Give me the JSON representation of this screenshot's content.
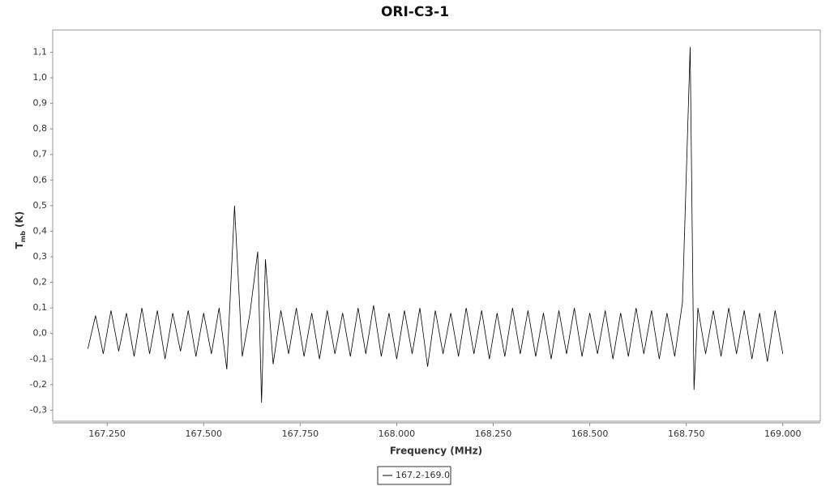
{
  "chart_data": {
    "type": "line",
    "title": "ORI-C3-1",
    "x_label": "Frequency (MHz)",
    "y_label": {
      "main": "T",
      "sub": "mb",
      "unit": "(K)"
    },
    "xlim": [
      167.109,
      169.097
    ],
    "ylim": [
      -0.343,
      1.187
    ],
    "xticks": [
      {
        "value": 167.25,
        "label": "167.250"
      },
      {
        "value": 167.5,
        "label": "167.500"
      },
      {
        "value": 167.75,
        "label": "167.750"
      },
      {
        "value": 168,
        "label": "168.000"
      },
      {
        "value": 168.25,
        "label": "168.250"
      },
      {
        "value": 168.5,
        "label": "168.500"
      },
      {
        "value": 168.75,
        "label": "168.750"
      },
      {
        "value": 169,
        "label": "169.000"
      }
    ],
    "yticks": [
      {
        "value": -0.3,
        "label": "-0,3"
      },
      {
        "value": -0.2,
        "label": "-0,2"
      },
      {
        "value": -0.1,
        "label": "-0,1"
      },
      {
        "value": 0,
        "label": "0,0"
      },
      {
        "value": 0.1,
        "label": "0,1"
      },
      {
        "value": 0.2,
        "label": "0,2"
      },
      {
        "value": 0.3,
        "label": "0,3"
      },
      {
        "value": 0.4,
        "label": "0,4"
      },
      {
        "value": 0.5,
        "label": "0,5"
      },
      {
        "value": 0.6,
        "label": "0,6"
      },
      {
        "value": 0.7,
        "label": "0,7"
      },
      {
        "value": 0.8,
        "label": "0,8"
      },
      {
        "value": 0.9,
        "label": "0,9"
      },
      {
        "value": 1.0,
        "label": "1,0"
      },
      {
        "value": 1.1,
        "label": "1,1"
      }
    ],
    "x": [
      167.2,
      167.22,
      167.24,
      167.26,
      167.28,
      167.3,
      167.32,
      167.34,
      167.36,
      167.38,
      167.4,
      167.42,
      167.44,
      167.46,
      167.48,
      167.5,
      167.52,
      167.54,
      167.56,
      167.58,
      167.6,
      167.62,
      167.64,
      167.65,
      167.66,
      167.68,
      167.7,
      167.72,
      167.74,
      167.76,
      167.78,
      167.8,
      167.82,
      167.84,
      167.86,
      167.88,
      167.9,
      167.92,
      167.94,
      167.96,
      167.98,
      168.0,
      168.02,
      168.04,
      168.06,
      168.08,
      168.1,
      168.12,
      168.14,
      168.16,
      168.18,
      168.2,
      168.22,
      168.24,
      168.26,
      168.28,
      168.3,
      168.32,
      168.34,
      168.36,
      168.38,
      168.4,
      168.42,
      168.44,
      168.46,
      168.48,
      168.5,
      168.52,
      168.54,
      168.56,
      168.58,
      168.6,
      168.62,
      168.64,
      168.66,
      168.68,
      168.7,
      168.72,
      168.74,
      168.76,
      168.77,
      168.78,
      168.8,
      168.82,
      168.84,
      168.86,
      168.88,
      168.9,
      168.92,
      168.94,
      168.96,
      168.98,
      169.0
    ],
    "series": [
      {
        "name": "167.2-169.0",
        "color": "#000000",
        "values": [
          -0.06,
          0.07,
          -0.08,
          0.09,
          -0.07,
          0.08,
          -0.09,
          0.1,
          -0.08,
          0.09,
          -0.1,
          0.08,
          -0.07,
          0.09,
          -0.09,
          0.08,
          -0.08,
          0.1,
          -0.14,
          0.5,
          -0.09,
          0.08,
          0.32,
          -0.27,
          0.29,
          -0.12,
          0.09,
          -0.08,
          0.1,
          -0.09,
          0.08,
          -0.1,
          0.09,
          -0.08,
          0.08,
          -0.09,
          0.1,
          -0.08,
          0.11,
          -0.09,
          0.08,
          -0.1,
          0.09,
          -0.08,
          0.1,
          -0.13,
          0.09,
          -0.08,
          0.08,
          -0.09,
          0.1,
          -0.08,
          0.09,
          -0.1,
          0.08,
          -0.09,
          0.1,
          -0.08,
          0.09,
          -0.09,
          0.08,
          -0.1,
          0.09,
          -0.08,
          0.1,
          -0.09,
          0.08,
          -0.08,
          0.09,
          -0.1,
          0.08,
          -0.09,
          0.1,
          -0.08,
          0.09,
          -0.1,
          0.08,
          -0.09,
          0.12,
          1.12,
          -0.22,
          0.1,
          -0.08,
          0.09,
          -0.09,
          0.1,
          -0.08,
          0.09,
          -0.1,
          0.08,
          -0.11,
          0.09,
          -0.08
        ]
      }
    ]
  }
}
